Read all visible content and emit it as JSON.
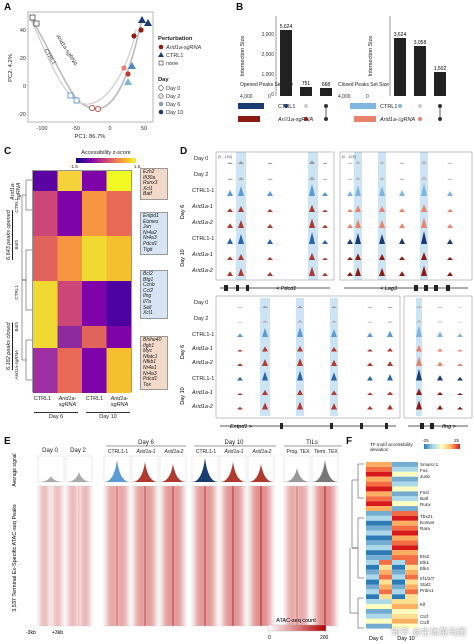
{
  "panels": {
    "a": "A",
    "b": "B",
    "c": "C",
    "d": "D",
    "e": "E",
    "f": "F"
  },
  "panelA": {
    "xlabel": "PC1: 86.7%",
    "ylabel": "PC2: 4.2%",
    "ticks_x": [
      "-100",
      "-50",
      "0",
      "50"
    ],
    "ticks_y": [
      "-20",
      "0",
      "20",
      "40"
    ],
    "annotations": [
      "Arid1a-sgRNA",
      "CTRL1"
    ],
    "legend_perturbation_title": "Perturbation",
    "legend_perturbation": [
      "Arid1a-sgRNA",
      "CTRL1",
      "none"
    ],
    "legend_day_title": "Day",
    "legend_day": [
      "Day 0",
      "Day 2",
      "Day 6",
      "Day 10"
    ]
  },
  "panelB": {
    "left": {
      "ylabel": "Intersection Size",
      "set_label": "Opened Peaks Set Size",
      "set_ticks": [
        "4,000",
        "0"
      ],
      "values": [
        "5,624",
        "751",
        "668"
      ]
    },
    "right": {
      "ylabel": "Intersection Size",
      "set_label": "Closed Peaks Set Size",
      "set_ticks": [
        "4,000",
        "0"
      ],
      "values": [
        "3,624",
        "3,058",
        "1,502"
      ]
    },
    "rows": [
      "CTRL1",
      "Arid1a-sgRNA"
    ],
    "y_ticks": [
      "0",
      "1,000",
      "2,000",
      "3,000"
    ]
  },
  "panelC": {
    "scale_title": "Accessibility z-score",
    "scale_ticks": [
      "-1.5",
      "1.5"
    ],
    "top_label": "Arid1a-sgRNA",
    "sections": [
      "6,643 peaks opened",
      "6,182 peaks closed"
    ],
    "row_groups": [
      "CTRL1",
      "Both",
      "CTRL1",
      "Both",
      "Arid1a-sgRNA"
    ],
    "genes_top": [
      "Ezh2",
      "Ifi30a",
      "Runx3",
      "Xcl1",
      "Batf"
    ],
    "genes_mid1": [
      "Entpd1",
      "Eomes",
      "Jun",
      "Nr4a2",
      "Nr4a3",
      "Pdcd1",
      "Tigit"
    ],
    "genes_mid2": [
      "Bcl2",
      "Btg1",
      "Ccnb",
      "Ccl2",
      "Ifng",
      "Il7a",
      "Sell",
      "Xcl1"
    ],
    "genes_bot": [
      "Bhlhe40",
      "Ifgb1",
      "Myc",
      "Nfatc1",
      "Nfkb1",
      "Nr4a1",
      "Nr4a3",
      "Pdcd1",
      "Tox"
    ],
    "columns": [
      "CTRL1",
      "Arid1a-sgRNA",
      "CTRL1",
      "Arid1a-sgRNA"
    ],
    "days": [
      "Day 6",
      "Day 10"
    ]
  },
  "panelD": {
    "rows": [
      "Day 0",
      "Day 2",
      "CTRL1-1",
      "Arid1a-1",
      "Arid1a-2",
      "CTRL1-1",
      "Arid1a-1",
      "Arid1a-2"
    ],
    "day_groups": [
      "Day 6",
      "Day 10"
    ],
    "range_left": "[0 - 150]",
    "range_right": "[0 - 425]",
    "genes_top": [
      "< Pdcd1",
      "< Lag3"
    ],
    "genes_bottom": [
      "Entpd1 >",
      "Ifng >"
    ]
  },
  "panelE": {
    "groups": [
      "Day 0",
      "Day 2",
      "Day 6",
      "Day 10",
      "TILs"
    ],
    "cols": [
      "",
      "",
      "CTRL1-1",
      "Arid1a-1",
      "Arid1a-2",
      "CTRL1-1",
      "Arid1a-1",
      "Arid1a-2",
      "Prog. TEX",
      "Term. TEX"
    ],
    "ylabel_top": "Average signal",
    "ylabel": "3,537 Terminal Ex-Specific ATAC-seq Peaks",
    "xtick_left": "-3kb",
    "xtick_right": "+3kb",
    "colorbar_label": "ATAC-seq count",
    "colorbar_ticks": [
      "0",
      "200"
    ]
  },
  "panelF": {
    "scale_title": "TF motif accessibility deviation",
    "scale_ticks": [
      "-25",
      "25"
    ],
    "genes": [
      "Smarcc1",
      "Fos",
      "Junb",
      "Fosl",
      "Batf",
      "Runx",
      "Tbx21",
      "Eomes",
      "Rara",
      "Ets2",
      "Elk1",
      "Elk4",
      "Irf1/2/7",
      "Stat2",
      "Prdm1",
      "Klf",
      "Ctcf",
      "Ctcfl"
    ],
    "days": [
      "Day 6",
      "Day 10"
    ]
  },
  "watermark": "知乎 @生信菜鸟团",
  "colors": {
    "ctrl": "#2b66a6",
    "ctrl_light": "#7fb6df",
    "arid": "#b03a2e",
    "arid_light": "#e8826a",
    "gray": "#777777",
    "navy": "#1a3c73",
    "highlight": "#cde4f5"
  }
}
